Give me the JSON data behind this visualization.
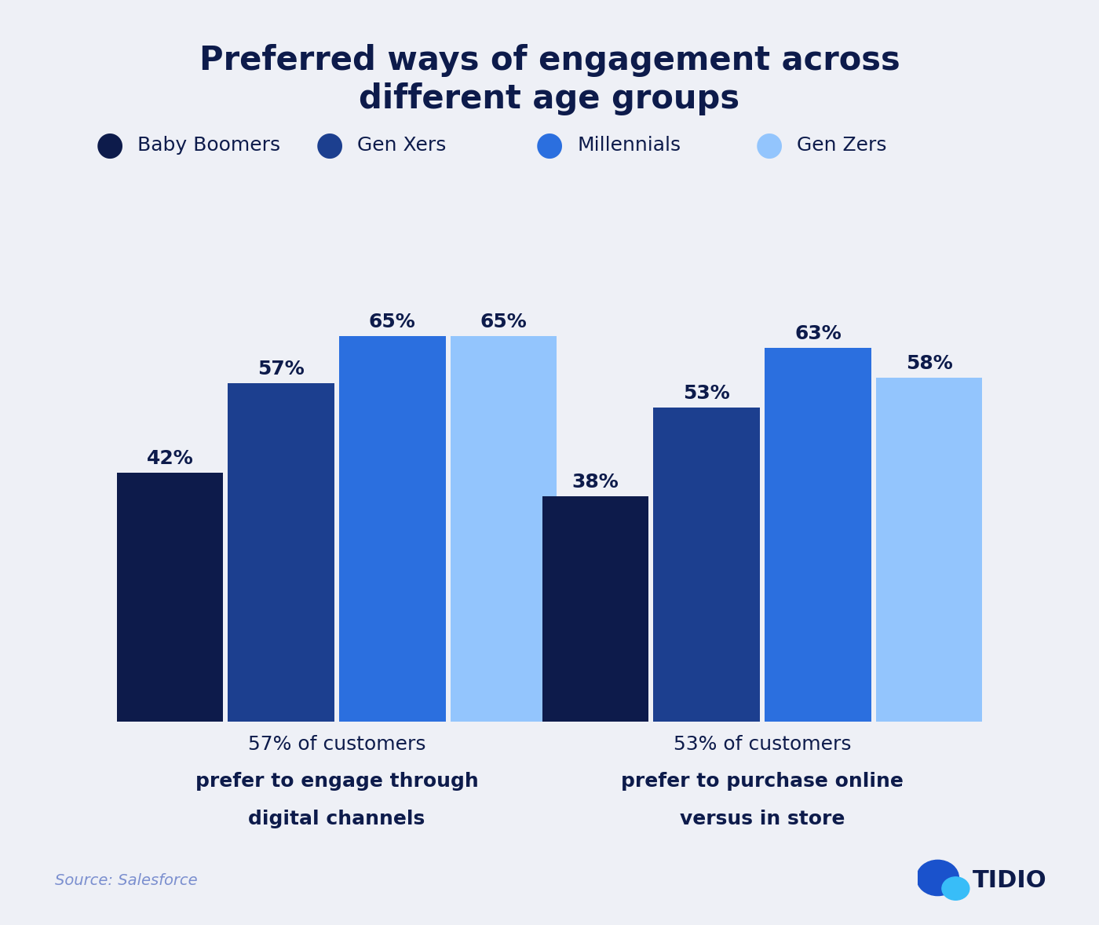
{
  "title_line1": "Preferred ways of engagement across",
  "title_line2": "different age groups",
  "background_color": "#eef0f6",
  "bar_colors": [
    "#0d1b4b",
    "#1c3f8f",
    "#2b6fdf",
    "#93c5fd"
  ],
  "legend_labels": [
    "Baby Boomers",
    "Gen Xers",
    "Millennials",
    "Gen Zers"
  ],
  "group1_values": [
    42,
    57,
    65,
    65
  ],
  "group2_values": [
    38,
    53,
    63,
    58
  ],
  "group1_line1": "57% of customers",
  "group1_line2": "prefer to engage through",
  "group1_line3": "digital channels",
  "group2_line1": "53% of customers",
  "group2_line2": "prefer to purchase online",
  "group2_line3": "versus in store",
  "source_text": "Source: Salesforce",
  "source_color": "#7b8fcf",
  "text_color": "#0d1b4b",
  "ylim": [
    0,
    78
  ],
  "title_fontsize": 30,
  "label_fontsize": 18,
  "value_fontsize": 18,
  "legend_fontsize": 18,
  "source_fontsize": 14
}
